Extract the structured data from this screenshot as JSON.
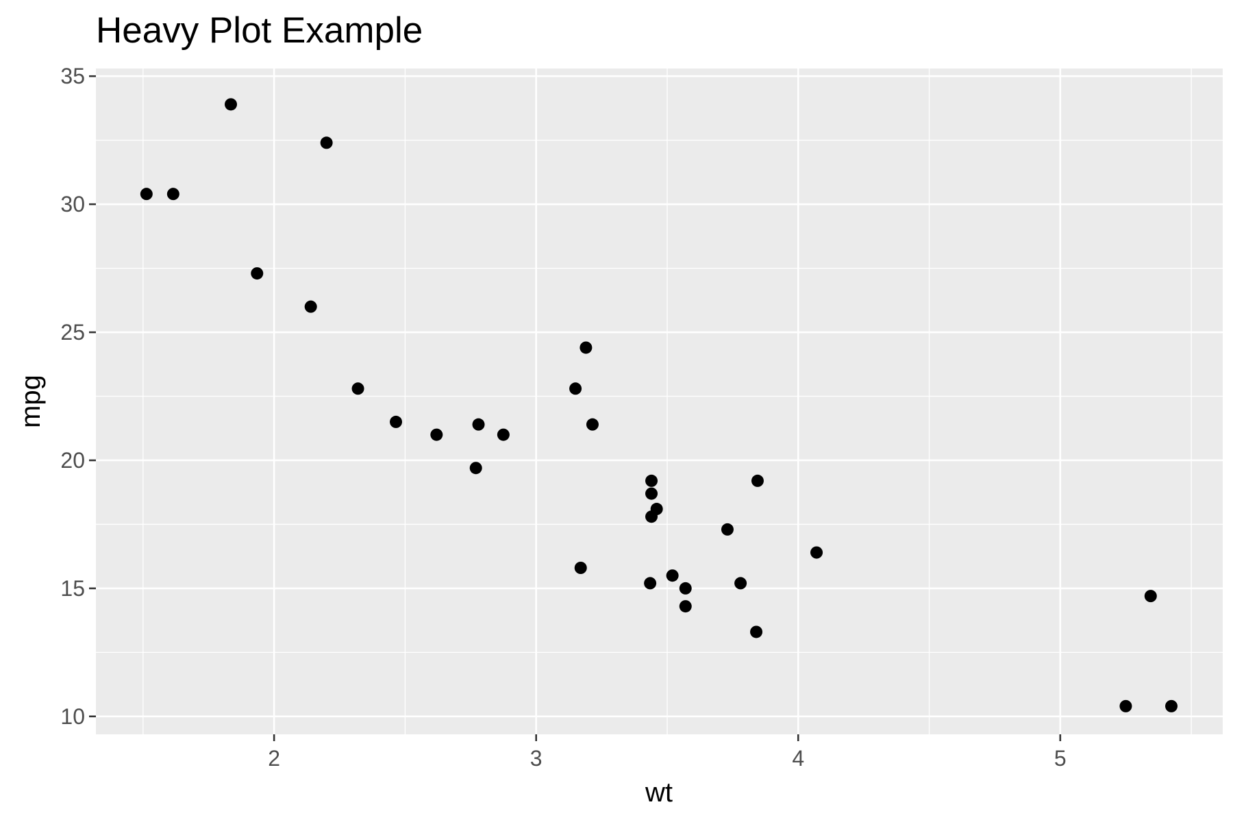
{
  "chart_data": {
    "type": "scatter",
    "title": "Heavy Plot Example",
    "xlabel": "wt",
    "ylabel": "mpg",
    "xlim": [
      1.32,
      5.62
    ],
    "ylim": [
      9.3,
      35.3
    ],
    "x_ticks": [
      2,
      3,
      4,
      5
    ],
    "x_tick_labels": [
      "2",
      "3",
      "4",
      "5"
    ],
    "x_minor_ticks": [
      1.5,
      2.5,
      3.5,
      4.5,
      5.5
    ],
    "y_ticks": [
      10,
      15,
      20,
      25,
      30,
      35
    ],
    "y_tick_labels": [
      "10",
      "15",
      "20",
      "25",
      "30",
      "35"
    ],
    "y_minor_ticks": [
      12.5,
      17.5,
      22.5,
      27.5,
      32.5
    ],
    "grid": true,
    "legend": "none",
    "point_color": "#000000",
    "panel_color": "#ebebeb",
    "x": [
      2.62,
      2.875,
      2.32,
      3.215,
      3.44,
      3.46,
      3.57,
      3.19,
      3.15,
      3.44,
      3.44,
      4.07,
      3.73,
      3.78,
      5.25,
      5.424,
      5.345,
      2.2,
      1.615,
      1.835,
      2.465,
      3.52,
      3.435,
      3.84,
      3.845,
      1.935,
      2.14,
      1.513,
      3.17,
      2.77,
      3.57,
      2.78
    ],
    "y": [
      21.0,
      21.0,
      22.8,
      21.4,
      18.7,
      18.1,
      14.3,
      24.4,
      22.8,
      19.2,
      17.8,
      16.4,
      17.3,
      15.2,
      10.4,
      10.4,
      14.7,
      32.4,
      30.4,
      33.9,
      21.5,
      15.5,
      15.2,
      13.3,
      19.2,
      27.3,
      26.0,
      30.4,
      15.8,
      19.7,
      15.0,
      21.4
    ]
  }
}
